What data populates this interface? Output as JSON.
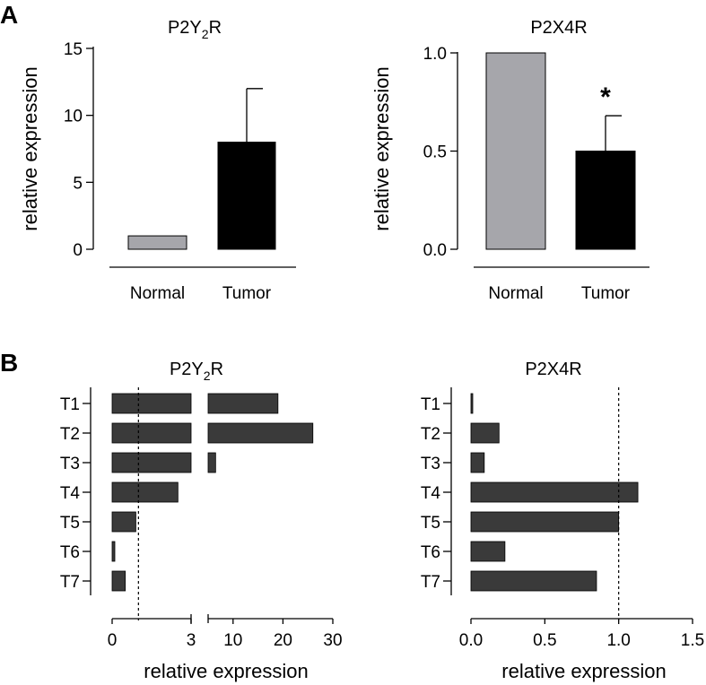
{
  "panels": {
    "a": "A",
    "b": "B"
  },
  "colors": {
    "normal": "#a6a6ab",
    "tumor": "#000000",
    "bar_b": "#3a3a3a"
  },
  "chart_data": [
    {
      "id": "a1",
      "type": "bar",
      "title_main": "P2Y",
      "title_sub": "2",
      "title_end": "R",
      "categories": [
        "Normal",
        "Tumor"
      ],
      "values": [
        1.0,
        8.0
      ],
      "error_upper": [
        null,
        12.0
      ],
      "ylabel": "relative expression",
      "ylim": [
        0,
        15
      ],
      "yticks": [
        "0",
        "5",
        "10",
        "15"
      ]
    },
    {
      "id": "a2",
      "type": "bar",
      "title": "P2X4R",
      "categories": [
        "Normal",
        "Tumor"
      ],
      "values": [
        1.0,
        0.5
      ],
      "error_upper": [
        null,
        0.68
      ],
      "significance": "*",
      "ylabel": "relative expression",
      "ylim": [
        0,
        1
      ],
      "yticks": [
        "0.0",
        "0.5",
        "1.0"
      ]
    },
    {
      "id": "b1",
      "type": "bar",
      "orientation": "horizontal",
      "title_main": "P2Y",
      "title_sub": "2",
      "title_end": "R",
      "categories": [
        "T1",
        "T2",
        "T3",
        "T4",
        "T5",
        "T6",
        "T7"
      ],
      "values": [
        19,
        26,
        6.5,
        2.5,
        0.9,
        0.1,
        0.5
      ],
      "axis_break": [
        3,
        5
      ],
      "xlim_low": [
        0,
        3
      ],
      "xlim_high": [
        5,
        30
      ],
      "xticks_low": [
        "0",
        "3"
      ],
      "xticks_high": [
        "10",
        "20",
        "30"
      ],
      "reference_line": 1,
      "xlabel": "relative expression"
    },
    {
      "id": "b2",
      "type": "bar",
      "orientation": "horizontal",
      "title": "P2X4R",
      "categories": [
        "T1",
        "T2",
        "T3",
        "T4",
        "T5",
        "T6",
        "T7"
      ],
      "values": [
        0.01,
        0.19,
        0.09,
        1.13,
        1.0,
        0.23,
        0.85
      ],
      "xlim": [
        0,
        1.5
      ],
      "xticks": [
        "0.0",
        "0.5",
        "1.0",
        "1.5"
      ],
      "reference_line": 1,
      "xlabel": "relative expression"
    }
  ]
}
